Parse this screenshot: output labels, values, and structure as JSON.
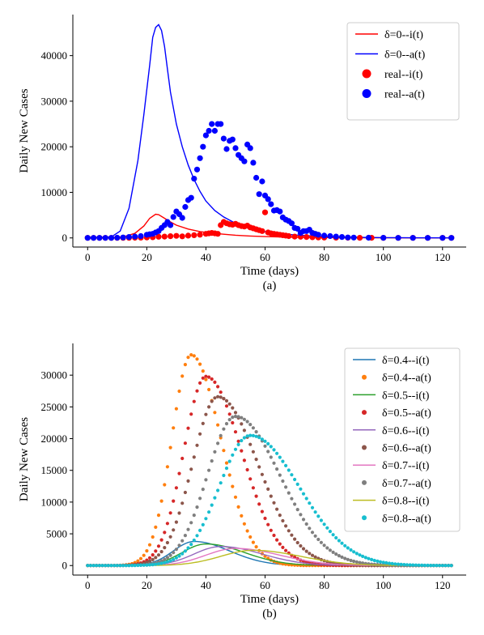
{
  "colors": {
    "red": "#ff0000",
    "blue": "#0000ff",
    "tab_blue": "#1f77b4",
    "tab_orange": "#ff7f0e",
    "tab_green": "#2ca02c",
    "tab_red": "#d62728",
    "tab_purple": "#9467bd",
    "tab_brown": "#8c564b",
    "tab_pink": "#e377c2",
    "tab_gray": "#7f7f7f",
    "tab_olive": "#bcbd22",
    "tab_cyan": "#17becf",
    "legend_border": "#cccccc"
  },
  "chart_data": [
    {
      "type": "line",
      "caption": "(a)",
      "xlabel": "Time (days)",
      "ylabel": "Daily New Cases",
      "xlim": [
        -5,
        128
      ],
      "ylim": [
        -2000,
        49000
      ],
      "xticks": [
        0,
        20,
        40,
        60,
        80,
        100,
        120
      ],
      "yticks": [
        0,
        10000,
        20000,
        30000,
        40000
      ],
      "grid": false,
      "legend_position": "top-right",
      "series": [
        {
          "name": "δ=0--i(t)",
          "style": "line",
          "color": "#ff0000",
          "x": [
            0,
            8,
            12,
            16,
            19,
            21,
            23,
            24,
            26,
            28,
            30,
            34,
            38,
            42,
            46,
            50,
            55,
            60,
            65,
            70,
            80,
            90,
            100,
            110,
            123
          ],
          "y": [
            0,
            40,
            220,
            1000,
            2600,
            4300,
            5200,
            5100,
            4300,
            3500,
            2800,
            1950,
            1400,
            1050,
            800,
            600,
            420,
            300,
            210,
            150,
            75,
            38,
            18,
            9,
            2
          ]
        },
        {
          "name": "δ=0--a(t)",
          "style": "line",
          "color": "#0000ff",
          "x": [
            0,
            8,
            11,
            14,
            17,
            19,
            21,
            22,
            23,
            24,
            25,
            26,
            27,
            28,
            30,
            32,
            34,
            36,
            38,
            40,
            43,
            46,
            50,
            55,
            60,
            65,
            70,
            80,
            90,
            100,
            110,
            123
          ],
          "y": [
            0,
            200,
            1500,
            6500,
            17000,
            27000,
            38000,
            44000,
            46200,
            46800,
            45500,
            42000,
            37000,
            32000,
            25000,
            20000,
            16000,
            12800,
            10200,
            8100,
            6000,
            4600,
            3200,
            2100,
            1400,
            950,
            650,
            300,
            140,
            65,
            30,
            8
          ]
        },
        {
          "name": "real--i(t)",
          "style": "scatter",
          "color": "#ff0000",
          "x": [
            0,
            2,
            4,
            6,
            8,
            10,
            12,
            14,
            16,
            18,
            20,
            22,
            24,
            26,
            28,
            30,
            32,
            34,
            36,
            38,
            40,
            41,
            42,
            43,
            44,
            45,
            46,
            47,
            48,
            49,
            50,
            51,
            52,
            53,
            54,
            55,
            56,
            57,
            58,
            59,
            60,
            61,
            62,
            63,
            64,
            65,
            66,
            67,
            68,
            70,
            72,
            74,
            76,
            78,
            80,
            84,
            88,
            92,
            96,
            100,
            105,
            110,
            115,
            120,
            123
          ],
          "y": [
            0,
            0,
            0,
            0,
            0,
            0,
            10,
            20,
            40,
            60,
            100,
            150,
            250,
            300,
            380,
            450,
            350,
            500,
            600,
            700,
            900,
            1000,
            1100,
            1000,
            900,
            2800,
            3500,
            3200,
            3000,
            2900,
            3100,
            2800,
            2600,
            2500,
            2700,
            2300,
            2100,
            1900,
            1700,
            1500,
            5600,
            1200,
            1000,
            900,
            800,
            700,
            600,
            500,
            400,
            300,
            250,
            200,
            150,
            100,
            80,
            60,
            40,
            30,
            20,
            10,
            5,
            0,
            0,
            0,
            0
          ]
        },
        {
          "name": "real--a(t)",
          "style": "scatter",
          "color": "#0000ff",
          "x": [
            0,
            2,
            4,
            6,
            8,
            10,
            12,
            14,
            16,
            18,
            20,
            21,
            22,
            23,
            24,
            25,
            26,
            27,
            28,
            29,
            30,
            31,
            32,
            33,
            34,
            35,
            36,
            37,
            38,
            39,
            40,
            41,
            42,
            43,
            44,
            45,
            46,
            47,
            48,
            49,
            50,
            51,
            52,
            53,
            54,
            55,
            56,
            57,
            58,
            59,
            60,
            61,
            62,
            63,
            64,
            65,
            66,
            67,
            68,
            69,
            70,
            71,
            72,
            73,
            74,
            75,
            76,
            77,
            78,
            80,
            82,
            84,
            86,
            88,
            90,
            95,
            100,
            105,
            110,
            115,
            120,
            123
          ],
          "y": [
            0,
            0,
            0,
            0,
            0,
            50,
            100,
            200,
            300,
            400,
            700,
            800,
            900,
            1200,
            1500,
            2200,
            2800,
            3500,
            2800,
            4600,
            5800,
            5200,
            4400,
            6800,
            8300,
            8800,
            13000,
            15000,
            17500,
            20000,
            22500,
            23500,
            25000,
            23500,
            25000,
            25000,
            21800,
            19500,
            21300,
            21600,
            19700,
            18200,
            17500,
            16800,
            20500,
            19700,
            16500,
            13200,
            9600,
            12400,
            9300,
            8500,
            7400,
            6000,
            6100,
            5800,
            4500,
            4000,
            3700,
            3200,
            2200,
            2000,
            1100,
            1500,
            1500,
            1800,
            1100,
            900,
            700,
            500,
            400,
            300,
            200,
            100,
            80,
            50,
            20,
            10,
            5,
            0,
            0,
            0
          ]
        }
      ]
    },
    {
      "type": "line",
      "caption": "(b)",
      "xlabel": "Time (days)",
      "ylabel": "Daily New Cases",
      "xlim": [
        -5,
        128
      ],
      "ylim": [
        -1500,
        35000
      ],
      "xticks": [
        0,
        20,
        40,
        60,
        80,
        100,
        120
      ],
      "yticks": [
        0,
        5000,
        10000,
        15000,
        20000,
        25000,
        30000
      ],
      "grid": false,
      "legend_position": "top-right",
      "series": [
        {
          "name": "δ=0.4--i(t)",
          "style": "line",
          "color": "#1f77b4",
          "model": {
            "peak": 36,
            "amp": 3800,
            "wl": 7,
            "wr": 12
          }
        },
        {
          "name": "δ=0.4--a(t)",
          "style": "scatter",
          "color": "#ff7f0e",
          "model": {
            "peak": 35,
            "amp": 33200,
            "wl": 6.5,
            "wr": 10
          }
        },
        {
          "name": "δ=0.5--i(t)",
          "style": "line",
          "color": "#2ca02c",
          "model": {
            "peak": 40,
            "amp": 3400,
            "wl": 8,
            "wr": 13
          }
        },
        {
          "name": "δ=0.5--a(t)",
          "style": "scatter",
          "color": "#d62728",
          "model": {
            "peak": 40,
            "amp": 29800,
            "wl": 7.5,
            "wr": 12
          }
        },
        {
          "name": "δ=0.6--i(t)",
          "style": "line",
          "color": "#9467bd",
          "model": {
            "peak": 45,
            "amp": 3000,
            "wl": 9,
            "wr": 14
          }
        },
        {
          "name": "δ=0.6--a(t)",
          "style": "scatter",
          "color": "#8c564b",
          "model": {
            "peak": 44,
            "amp": 26600,
            "wl": 8.5,
            "wr": 13.5
          }
        },
        {
          "name": "δ=0.7--i(t)",
          "style": "line",
          "color": "#e377c2",
          "model": {
            "peak": 50,
            "amp": 2700,
            "wl": 10,
            "wr": 15
          }
        },
        {
          "name": "δ=0.7--a(t)",
          "style": "scatter",
          "color": "#7f7f7f",
          "model": {
            "peak": 50,
            "amp": 23500,
            "wl": 9.5,
            "wr": 15
          }
        },
        {
          "name": "δ=0.8--i(t)",
          "style": "line",
          "color": "#bcbd22",
          "model": {
            "peak": 56,
            "amp": 2400,
            "wl": 11,
            "wr": 16
          }
        },
        {
          "name": "δ=0.8--a(t)",
          "style": "scatter",
          "color": "#17becf",
          "model": {
            "peak": 55,
            "amp": 20500,
            "wl": 10.5,
            "wr": 16.5
          }
        }
      ]
    }
  ]
}
